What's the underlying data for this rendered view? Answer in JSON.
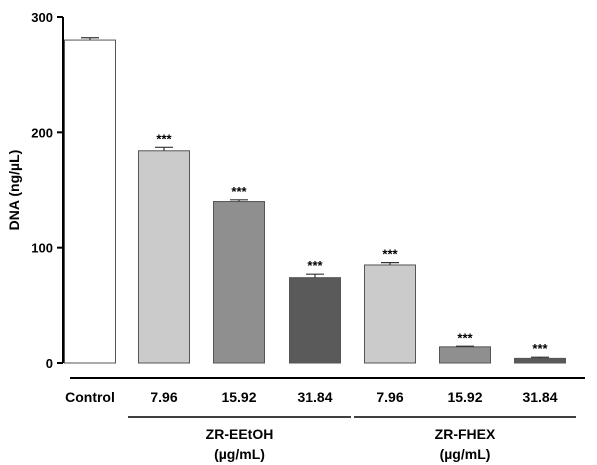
{
  "chart_data": {
    "type": "bar",
    "title": "",
    "ylabel": "DNA (ng/µL)",
    "ylim": [
      0,
      300
    ],
    "yticks": [
      0,
      100,
      200,
      300
    ],
    "categories": [
      "Control",
      "7.96",
      "15.92",
      "31.84",
      "7.96",
      "15.92",
      "31.84"
    ],
    "values": [
      280,
      184,
      140,
      74,
      85,
      14,
      4
    ],
    "errors": [
      2,
      3,
      1.5,
      3,
      2,
      0.5,
      1
    ],
    "significance": [
      "",
      "***",
      "***",
      "***",
      "***",
      "***",
      "***"
    ],
    "bar_colors": [
      "#ffffff",
      "#cbcbcb",
      "#8f8f8f",
      "#5a5a5a",
      "#cbcbcb",
      "#8f8f8f",
      "#5a5a5a"
    ],
    "groups": [
      {
        "name": "ZR-EEtOH",
        "unit": "(µg/mL)",
        "members": [
          1,
          2,
          3
        ]
      },
      {
        "name": "ZR-FHEX",
        "unit": "(µg/mL)",
        "members": [
          4,
          5,
          6
        ]
      }
    ],
    "grid": false,
    "legend": "none"
  }
}
